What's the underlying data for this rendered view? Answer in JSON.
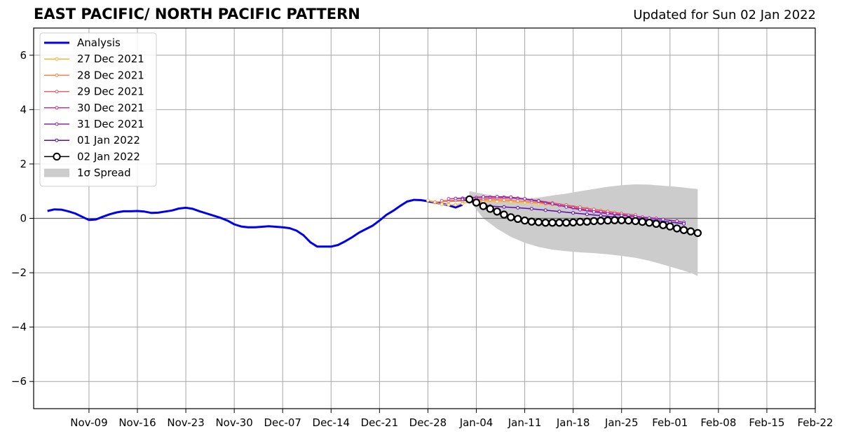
{
  "chart_data": {
    "type": "line",
    "title": "EAST PACIFIC/ NORTH PACIFIC PATTERN",
    "subtitle": "Updated for Sun 02 Jan 2022",
    "xlabel": "",
    "ylabel": "",
    "xlim": [
      "2021-11-01",
      "2022-02-22"
    ],
    "ylim": [
      -7,
      7
    ],
    "x_ticks": [
      "Nov-09",
      "Nov-16",
      "Nov-23",
      "Nov-30",
      "Dec-07",
      "Dec-14",
      "Dec-21",
      "Dec-28",
      "Jan-04",
      "Jan-11",
      "Jan-18",
      "Jan-25",
      "Feb-01",
      "Feb-08",
      "Feb-15",
      "Feb-22"
    ],
    "x_tick_dates": [
      "2021-11-09",
      "2021-11-16",
      "2021-11-23",
      "2021-11-30",
      "2021-12-07",
      "2021-12-14",
      "2021-12-21",
      "2021-12-28",
      "2022-01-04",
      "2022-01-11",
      "2022-01-18",
      "2022-01-25",
      "2022-02-01",
      "2022-02-08",
      "2022-02-15",
      "2022-02-22"
    ],
    "y_ticks": [
      -6,
      -4,
      -2,
      0,
      2,
      4,
      6
    ],
    "y_tick_labels": [
      "−6",
      "−4",
      "−2",
      "0",
      "2",
      "4",
      "6"
    ],
    "grid": true,
    "legend_position": "top-left",
    "analysis": {
      "name": "Analysis",
      "color": "#0000ee",
      "points": [
        [
          "2021-11-03",
          0.27
        ],
        [
          "2021-11-04",
          0.33
        ],
        [
          "2021-11-05",
          0.32
        ],
        [
          "2021-11-06",
          0.26
        ],
        [
          "2021-11-07",
          0.18
        ],
        [
          "2021-11-08",
          0.06
        ],
        [
          "2021-11-09",
          -0.06
        ],
        [
          "2021-11-10",
          -0.04
        ],
        [
          "2021-11-11",
          0.06
        ],
        [
          "2021-11-12",
          0.15
        ],
        [
          "2021-11-13",
          0.22
        ],
        [
          "2021-11-14",
          0.26
        ],
        [
          "2021-11-15",
          0.26
        ],
        [
          "2021-11-16",
          0.27
        ],
        [
          "2021-11-17",
          0.25
        ],
        [
          "2021-11-18",
          0.2
        ],
        [
          "2021-11-19",
          0.21
        ],
        [
          "2021-11-20",
          0.25
        ],
        [
          "2021-11-21",
          0.29
        ],
        [
          "2021-11-22",
          0.36
        ],
        [
          "2021-11-23",
          0.39
        ],
        [
          "2021-11-24",
          0.35
        ],
        [
          "2021-11-25",
          0.26
        ],
        [
          "2021-11-26",
          0.18
        ],
        [
          "2021-11-27",
          0.1
        ],
        [
          "2021-11-28",
          0.02
        ],
        [
          "2021-11-29",
          -0.08
        ],
        [
          "2021-11-30",
          -0.22
        ],
        [
          "2021-12-01",
          -0.3
        ],
        [
          "2021-12-02",
          -0.33
        ],
        [
          "2021-12-03",
          -0.33
        ],
        [
          "2021-12-04",
          -0.31
        ],
        [
          "2021-12-05",
          -0.29
        ],
        [
          "2021-12-06",
          -0.31
        ],
        [
          "2021-12-07",
          -0.33
        ],
        [
          "2021-12-08",
          -0.36
        ],
        [
          "2021-12-09",
          -0.45
        ],
        [
          "2021-12-10",
          -0.62
        ],
        [
          "2021-12-11",
          -0.88
        ],
        [
          "2021-12-12",
          -1.04
        ],
        [
          "2021-12-13",
          -1.04
        ],
        [
          "2021-12-14",
          -1.04
        ],
        [
          "2021-12-15",
          -0.98
        ],
        [
          "2021-12-16",
          -0.85
        ],
        [
          "2021-12-17",
          -0.7
        ],
        [
          "2021-12-18",
          -0.53
        ],
        [
          "2021-12-19",
          -0.4
        ],
        [
          "2021-12-20",
          -0.27
        ],
        [
          "2021-12-21",
          -0.08
        ],
        [
          "2021-12-22",
          0.13
        ],
        [
          "2021-12-23",
          0.28
        ],
        [
          "2021-12-24",
          0.46
        ],
        [
          "2021-12-25",
          0.62
        ],
        [
          "2021-12-26",
          0.68
        ],
        [
          "2021-12-27",
          0.67
        ],
        [
          "2021-12-28",
          0.63
        ],
        [
          "2021-12-29",
          0.58
        ],
        [
          "2021-12-30",
          0.54
        ],
        [
          "2021-12-31",
          0.48
        ],
        [
          "2022-01-01",
          0.4
        ],
        [
          "2022-01-02",
          0.5
        ]
      ]
    },
    "spread": {
      "name": "1σ Spread",
      "color": "#cccccc",
      "upper": [
        [
          "2022-01-03",
          1.0
        ],
        [
          "2022-01-05",
          0.9
        ],
        [
          "2022-01-07",
          0.8
        ],
        [
          "2022-01-09",
          0.73
        ],
        [
          "2022-01-11",
          0.72
        ],
        [
          "2022-01-13",
          0.76
        ],
        [
          "2022-01-15",
          0.84
        ],
        [
          "2022-01-17",
          0.91
        ],
        [
          "2022-01-19",
          1.0
        ],
        [
          "2022-01-21",
          1.08
        ],
        [
          "2022-01-23",
          1.16
        ],
        [
          "2022-01-25",
          1.22
        ],
        [
          "2022-01-27",
          1.25
        ],
        [
          "2022-01-29",
          1.24
        ],
        [
          "2022-01-31",
          1.2
        ],
        [
          "2022-02-02",
          1.16
        ],
        [
          "2022-02-04",
          1.1
        ],
        [
          "2022-02-05",
          1.08
        ]
      ],
      "lower": [
        [
          "2022-01-03",
          0.65
        ],
        [
          "2022-01-05",
          0.0
        ],
        [
          "2022-01-07",
          -0.38
        ],
        [
          "2022-01-09",
          -0.68
        ],
        [
          "2022-01-11",
          -0.9
        ],
        [
          "2022-01-13",
          -1.05
        ],
        [
          "2022-01-15",
          -1.15
        ],
        [
          "2022-01-17",
          -1.21
        ],
        [
          "2022-01-19",
          -1.25
        ],
        [
          "2022-01-21",
          -1.28
        ],
        [
          "2022-01-23",
          -1.32
        ],
        [
          "2022-01-25",
          -1.38
        ],
        [
          "2022-01-27",
          -1.45
        ],
        [
          "2022-01-29",
          -1.56
        ],
        [
          "2022-01-31",
          -1.7
        ],
        [
          "2022-02-02",
          -1.85
        ],
        [
          "2022-02-04",
          -2.0
        ],
        [
          "2022-02-05",
          -2.12
        ]
      ]
    },
    "series": [
      {
        "name": "27 Dec 2021",
        "color": "#fdb338",
        "marker": "small",
        "points": [
          [
            "2021-12-28",
            0.66
          ],
          [
            "2021-12-29",
            0.58
          ],
          [
            "2021-12-30",
            0.52
          ],
          [
            "2021-12-31",
            0.5
          ],
          [
            "2022-01-01",
            0.5
          ],
          [
            "2022-01-02",
            0.55
          ],
          [
            "2022-01-03",
            0.6
          ],
          [
            "2022-01-05",
            0.62
          ],
          [
            "2022-01-07",
            0.62
          ],
          [
            "2022-01-09",
            0.61
          ],
          [
            "2022-01-11",
            0.58
          ],
          [
            "2022-01-13",
            0.55
          ],
          [
            "2022-01-15",
            0.5
          ],
          [
            "2022-01-17",
            0.45
          ],
          [
            "2022-01-19",
            0.4
          ],
          [
            "2022-01-21",
            0.33
          ],
          [
            "2022-01-23",
            0.26
          ]
        ]
      },
      {
        "name": "28 Dec 2021",
        "color": "#f0824a",
        "marker": "small",
        "points": [
          [
            "2021-12-29",
            0.6
          ],
          [
            "2021-12-31",
            0.62
          ],
          [
            "2022-01-02",
            0.64
          ],
          [
            "2022-01-04",
            0.67
          ],
          [
            "2022-01-06",
            0.68
          ],
          [
            "2022-01-08",
            0.67
          ],
          [
            "2022-01-10",
            0.64
          ],
          [
            "2022-01-12",
            0.6
          ],
          [
            "2022-01-14",
            0.54
          ],
          [
            "2022-01-16",
            0.48
          ],
          [
            "2022-01-18",
            0.42
          ],
          [
            "2022-01-20",
            0.36
          ],
          [
            "2022-01-22",
            0.29
          ],
          [
            "2022-01-24",
            0.22
          ]
        ]
      },
      {
        "name": "29 Dec 2021",
        "color": "#e05e6a",
        "marker": "small",
        "points": [
          [
            "2021-12-30",
            0.65
          ],
          [
            "2022-01-01",
            0.66
          ],
          [
            "2022-01-03",
            0.68
          ],
          [
            "2022-01-05",
            0.72
          ],
          [
            "2022-01-07",
            0.74
          ],
          [
            "2022-01-09",
            0.74
          ],
          [
            "2022-01-11",
            0.71
          ],
          [
            "2022-01-13",
            0.65
          ],
          [
            "2022-01-15",
            0.57
          ],
          [
            "2022-01-17",
            0.49
          ],
          [
            "2022-01-19",
            0.41
          ],
          [
            "2022-01-21",
            0.33
          ],
          [
            "2022-01-23",
            0.25
          ],
          [
            "2022-01-25",
            0.18
          ],
          [
            "2022-01-27",
            0.12
          ]
        ]
      },
      {
        "name": "30 Dec 2021",
        "color": "#c2378f",
        "marker": "small",
        "points": [
          [
            "2021-12-31",
            0.72
          ],
          [
            "2022-01-02",
            0.74
          ],
          [
            "2022-01-04",
            0.77
          ],
          [
            "2022-01-06",
            0.79
          ],
          [
            "2022-01-08",
            0.78
          ],
          [
            "2022-01-10",
            0.74
          ],
          [
            "2022-01-12",
            0.66
          ],
          [
            "2022-01-14",
            0.57
          ],
          [
            "2022-01-16",
            0.48
          ],
          [
            "2022-01-18",
            0.39
          ],
          [
            "2022-01-20",
            0.31
          ],
          [
            "2022-01-22",
            0.24
          ],
          [
            "2022-01-24",
            0.17
          ],
          [
            "2022-01-26",
            0.11
          ],
          [
            "2022-01-28",
            0.05
          ],
          [
            "2022-01-30",
            0.0
          ]
        ]
      },
      {
        "name": "31 Dec 2021",
        "color": "#9123b4",
        "marker": "small",
        "points": [
          [
            "2022-01-01",
            0.73
          ],
          [
            "2022-01-03",
            0.76
          ],
          [
            "2022-01-05",
            0.79
          ],
          [
            "2022-01-07",
            0.8
          ],
          [
            "2022-01-09",
            0.78
          ],
          [
            "2022-01-11",
            0.72
          ],
          [
            "2022-01-13",
            0.64
          ],
          [
            "2022-01-15",
            0.53
          ],
          [
            "2022-01-17",
            0.42
          ],
          [
            "2022-01-19",
            0.32
          ],
          [
            "2022-01-21",
            0.24
          ],
          [
            "2022-01-23",
            0.17
          ],
          [
            "2022-01-25",
            0.11
          ],
          [
            "2022-01-27",
            0.06
          ],
          [
            "2022-01-29",
            0.01
          ],
          [
            "2022-01-31",
            -0.04
          ],
          [
            "2022-02-02",
            -0.1
          ],
          [
            "2022-02-03",
            -0.15
          ]
        ]
      },
      {
        "name": "01 Jan 2022",
        "color": "#5a0ea6",
        "marker": "small",
        "points": [
          [
            "2022-01-02",
            0.7
          ],
          [
            "2022-01-04",
            0.55
          ],
          [
            "2022-01-06",
            0.45
          ],
          [
            "2022-01-08",
            0.42
          ],
          [
            "2022-01-10",
            0.39
          ],
          [
            "2022-01-12",
            0.35
          ],
          [
            "2022-01-14",
            0.3
          ],
          [
            "2022-01-16",
            0.25
          ],
          [
            "2022-01-18",
            0.2
          ],
          [
            "2022-01-20",
            0.15
          ],
          [
            "2022-01-22",
            0.1
          ],
          [
            "2022-01-24",
            0.05
          ],
          [
            "2022-01-26",
            0.01
          ],
          [
            "2022-01-28",
            -0.03
          ],
          [
            "2022-01-30",
            -0.08
          ],
          [
            "2022-02-01",
            -0.14
          ],
          [
            "2022-02-03",
            -0.2
          ]
        ]
      },
      {
        "name": "02 Jan 2022",
        "color": "#000000",
        "marker": "large",
        "points": [
          [
            "2022-01-03",
            0.7
          ],
          [
            "2022-01-04",
            0.58
          ],
          [
            "2022-01-05",
            0.45
          ],
          [
            "2022-01-06",
            0.35
          ],
          [
            "2022-01-07",
            0.25
          ],
          [
            "2022-01-08",
            0.14
          ],
          [
            "2022-01-09",
            0.04
          ],
          [
            "2022-01-10",
            -0.02
          ],
          [
            "2022-01-11",
            -0.08
          ],
          [
            "2022-01-12",
            -0.12
          ],
          [
            "2022-01-13",
            -0.14
          ],
          [
            "2022-01-14",
            -0.16
          ],
          [
            "2022-01-15",
            -0.16
          ],
          [
            "2022-01-16",
            -0.16
          ],
          [
            "2022-01-17",
            -0.16
          ],
          [
            "2022-01-18",
            -0.15
          ],
          [
            "2022-01-19",
            -0.13
          ],
          [
            "2022-01-20",
            -0.12
          ],
          [
            "2022-01-21",
            -0.1
          ],
          [
            "2022-01-22",
            -0.09
          ],
          [
            "2022-01-23",
            -0.08
          ],
          [
            "2022-01-24",
            -0.07
          ],
          [
            "2022-01-25",
            -0.07
          ],
          [
            "2022-01-26",
            -0.08
          ],
          [
            "2022-01-27",
            -0.1
          ],
          [
            "2022-01-28",
            -0.13
          ],
          [
            "2022-01-29",
            -0.16
          ],
          [
            "2022-01-30",
            -0.2
          ],
          [
            "2022-01-31",
            -0.25
          ],
          [
            "2022-02-01",
            -0.3
          ],
          [
            "2022-02-02",
            -0.37
          ],
          [
            "2022-02-03",
            -0.43
          ],
          [
            "2022-02-04",
            -0.48
          ],
          [
            "2022-02-05",
            -0.54
          ]
        ]
      }
    ]
  }
}
